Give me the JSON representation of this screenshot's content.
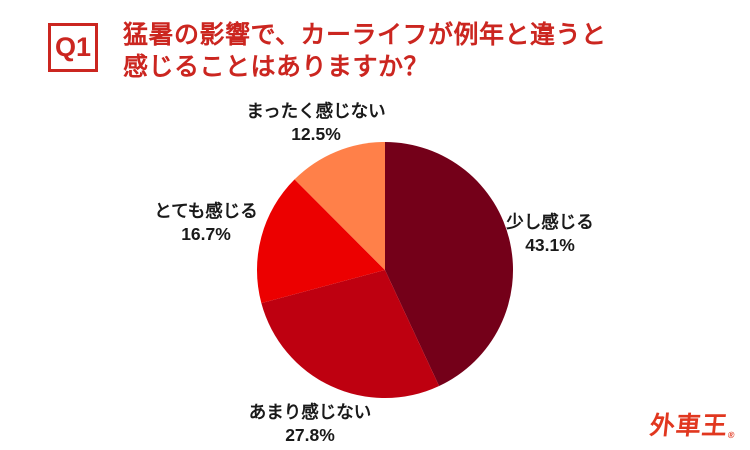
{
  "header": {
    "badge": "Q1",
    "title_line1": "猛暑の影響で、カーライフが例年と違うと",
    "title_line2": "感じることはありますか？"
  },
  "chart_data": {
    "type": "pie",
    "start_angle_deg": 0,
    "direction": "clockwise",
    "legend_position": "labels-around-pie",
    "slices": [
      {
        "label": "少し感じる",
        "value": 43.1,
        "pct_label": "43.1%",
        "color": "#740019"
      },
      {
        "label": "あまり感じない",
        "value": 27.8,
        "pct_label": "27.8%",
        "color": "#be0010"
      },
      {
        "label": "とても感じる",
        "value": 16.7,
        "pct_label": "16.7%",
        "color": "#ec0000"
      },
      {
        "label": "まったく感じない",
        "value": 12.5,
        "pct_label": "12.5%",
        "color": "#ff8049"
      }
    ]
  },
  "branding": {
    "logo_text": "外車王",
    "registered_mark": "®"
  },
  "colors": {
    "title_red": "#cb2620",
    "logo_red": "#e1371f",
    "label_black": "#1a1a1a",
    "background": "#ffffff"
  }
}
